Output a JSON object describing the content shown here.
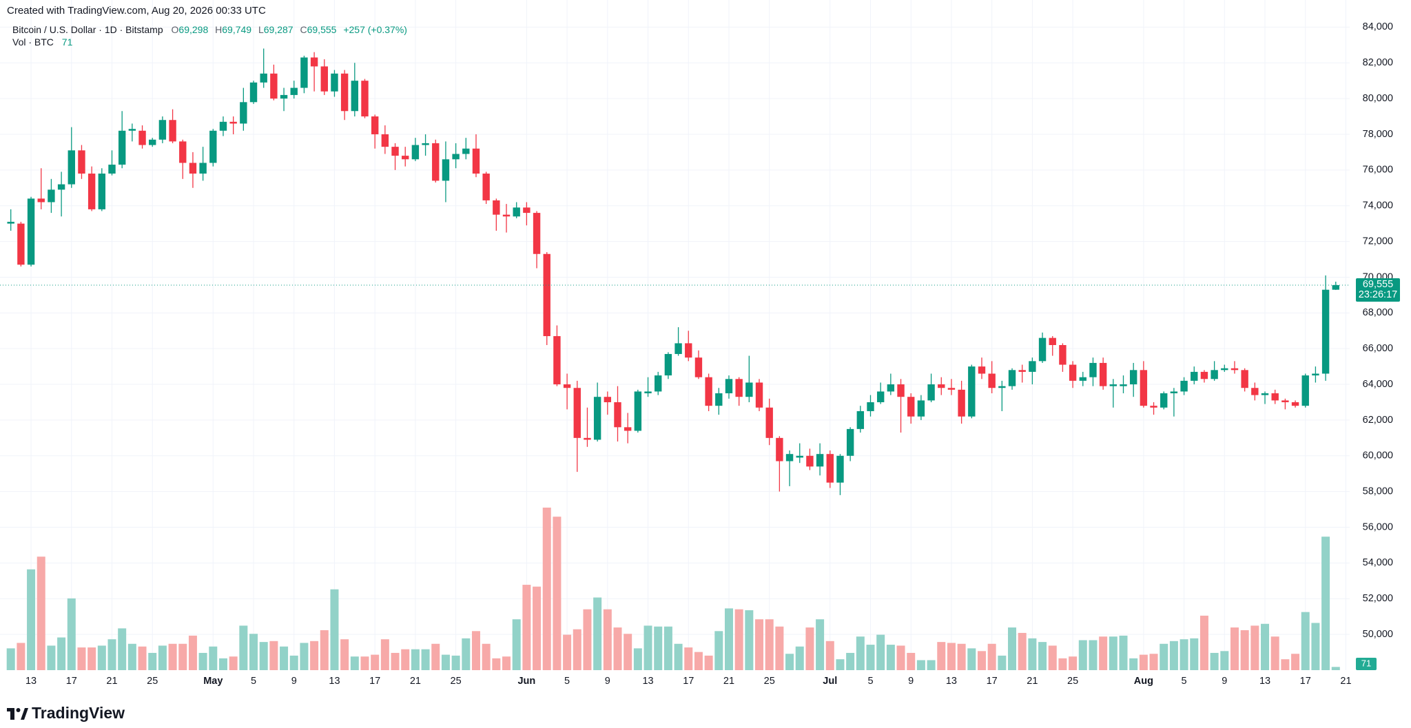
{
  "header": {
    "created": "Created with TradingView.com, Aug 20, 2026 00:33 UTC",
    "brand": "TradingView"
  },
  "chart_data": {
    "type": "candlestick",
    "legend": {
      "symbol": "Bitcoin / U.S. Dollar · 1D · Bitstamp",
      "ohlc": [
        {
          "key": "O",
          "label": "69,298"
        },
        {
          "key": "H",
          "label": "69,749"
        },
        {
          "key": "L",
          "label": "69,287"
        },
        {
          "key": "C",
          "label": "69,555"
        }
      ],
      "change": "+257 (+0.37%)",
      "volume_title": "Vol · BTC"
    },
    "last_price_label": "69,555",
    "countdown": "23:26:17",
    "up_color": "#089981",
    "down_color": "#f23645",
    "volume_up_color": "#92d2c8",
    "volume_down_color": "#f7a9a8",
    "grid": true,
    "x": [
      "2026-04-11",
      "2026-04-12",
      "2026-04-13",
      "2026-04-14",
      "2026-04-15",
      "2026-04-16",
      "2026-04-17",
      "2026-04-18",
      "2026-04-19",
      "2026-04-20",
      "2026-04-21",
      "2026-04-22",
      "2026-04-23",
      "2026-04-24",
      "2026-04-25",
      "2026-04-26",
      "2026-04-27",
      "2026-04-28",
      "2026-04-29",
      "2026-04-30",
      "2026-05-01",
      "2026-05-02",
      "2026-05-03",
      "2026-05-04",
      "2026-05-05",
      "2026-05-06",
      "2026-05-07",
      "2026-05-08",
      "2026-05-09",
      "2026-05-10",
      "2026-05-11",
      "2026-05-12",
      "2026-05-13",
      "2026-05-14",
      "2026-05-15",
      "2026-05-16",
      "2026-05-17",
      "2026-05-18",
      "2026-05-19",
      "2026-05-20",
      "2026-05-21",
      "2026-05-22",
      "2026-05-23",
      "2026-05-24",
      "2026-05-25",
      "2026-05-26",
      "2026-05-27",
      "2026-05-28",
      "2026-05-29",
      "2026-05-30",
      "2026-05-31",
      "2026-06-01",
      "2026-06-02",
      "2026-06-03",
      "2026-06-04",
      "2026-06-05",
      "2026-06-06",
      "2026-06-07",
      "2026-06-08",
      "2026-06-09",
      "2026-06-10",
      "2026-06-11",
      "2026-06-12",
      "2026-06-13",
      "2026-06-14",
      "2026-06-15",
      "2026-06-16",
      "2026-06-17",
      "2026-06-18",
      "2026-06-19",
      "2026-06-20",
      "2026-06-21",
      "2026-06-22",
      "2026-06-23",
      "2026-06-24",
      "2026-06-25",
      "2026-06-26",
      "2026-06-27",
      "2026-06-28",
      "2026-06-29",
      "2026-06-30",
      "2026-07-01",
      "2026-07-02",
      "2026-07-03",
      "2026-07-04",
      "2026-07-05",
      "2026-07-06",
      "2026-07-07",
      "2026-07-08",
      "2026-07-09",
      "2026-07-10",
      "2026-07-11",
      "2026-07-12",
      "2026-07-13",
      "2026-07-14",
      "2026-07-15",
      "2026-07-16",
      "2026-07-17",
      "2026-07-18",
      "2026-07-19",
      "2026-07-20",
      "2026-07-21",
      "2026-07-22",
      "2026-07-23",
      "2026-07-24",
      "2026-07-25",
      "2026-07-26",
      "2026-07-27",
      "2026-07-28",
      "2026-07-29",
      "2026-07-30",
      "2026-07-31",
      "2026-08-01",
      "2026-08-02",
      "2026-08-03",
      "2026-08-04",
      "2026-08-05",
      "2026-08-06",
      "2026-08-07",
      "2026-08-08",
      "2026-08-09",
      "2026-08-10",
      "2026-08-11",
      "2026-08-12",
      "2026-08-13",
      "2026-08-14",
      "2026-08-15",
      "2026-08-16",
      "2026-08-17",
      "2026-08-18",
      "2026-08-19",
      "2026-08-20"
    ],
    "open": [
      73000,
      73000,
      70700,
      74400,
      74200,
      74900,
      75200,
      77100,
      75800,
      73800,
      75800,
      76300,
      78200,
      78200,
      77400,
      77700,
      78800,
      77600,
      76400,
      75800,
      76400,
      78200,
      78700,
      78600,
      79800,
      80900,
      81400,
      80000,
      80200,
      80600,
      82300,
      81800,
      80400,
      81400,
      79300,
      81000,
      79000,
      78000,
      77300,
      76800,
      76600,
      77400,
      77500,
      75400,
      76600,
      76900,
      77200,
      75800,
      74300,
      73500,
      73400,
      73900,
      73600,
      71300,
      66700,
      64000,
      63800,
      61000,
      60900,
      63300,
      63000,
      61600,
      61400,
      63500,
      63600,
      64500,
      65700,
      66300,
      65500,
      64400,
      62800,
      63500,
      64300,
      63300,
      64100,
      62700,
      61000,
      59700,
      59900,
      60000,
      59400,
      60100,
      58500,
      60000,
      61500,
      62500,
      63000,
      63600,
      64000,
      63300,
      62200,
      63100,
      64000,
      63800,
      63700,
      62200,
      65000,
      64600,
      63800,
      63900,
      64800,
      64700,
      65300,
      66600,
      66200,
      65100,
      64200,
      64400,
      65200,
      63900,
      63900,
      64000,
      64800,
      62800,
      62700,
      63500,
      63600,
      64200,
      64700,
      64300,
      64800,
      64900,
      64800,
      63800,
      63400,
      63500,
      63100,
      63000,
      62800,
      64500,
      64600,
      69298
    ],
    "high": [
      73800,
      73100,
      74500,
      76100,
      75500,
      75900,
      78400,
      77400,
      76200,
      76100,
      77100,
      79300,
      78600,
      78500,
      77800,
      79000,
      79400,
      77700,
      77000,
      77300,
      78300,
      79000,
      79000,
      80600,
      81000,
      82800,
      81900,
      80600,
      81000,
      82400,
      82600,
      82200,
      81600,
      81600,
      82000,
      81100,
      79100,
      78500,
      77500,
      77300,
      77800,
      78000,
      77700,
      77600,
      77500,
      77800,
      78000,
      75900,
      74400,
      74100,
      74200,
      74200,
      73700,
      71400,
      67300,
      64600,
      64200,
      62700,
      64100,
      63600,
      63900,
      62400,
      63700,
      64400,
      64700,
      65800,
      67200,
      67000,
      65900,
      64600,
      63800,
      64500,
      64400,
      65600,
      64300,
      63200,
      61100,
      60300,
      60700,
      60400,
      60700,
      60300,
      60100,
      61600,
      62800,
      63400,
      64100,
      64600,
      64300,
      63500,
      63400,
      64600,
      64400,
      64300,
      64200,
      65100,
      65500,
      65300,
      64200,
      64900,
      65100,
      65500,
      66900,
      66700,
      66300,
      65300,
      64700,
      65500,
      65500,
      64300,
      64500,
      65200,
      65300,
      63000,
      63600,
      63800,
      64400,
      65000,
      64800,
      65300,
      65100,
      65300,
      64900,
      64100,
      63600,
      63700,
      63200,
      63100,
      64600,
      65000,
      70100,
      69749
    ],
    "low": [
      72600,
      70600,
      70600,
      73800,
      73600,
      73400,
      75000,
      75500,
      73700,
      73700,
      75700,
      76100,
      77600,
      77200,
      77300,
      77500,
      77500,
      75500,
      75000,
      75400,
      76200,
      77900,
      78000,
      78200,
      79700,
      80600,
      79900,
      79300,
      80000,
      80300,
      80400,
      80200,
      80100,
      78800,
      79000,
      78900,
      77200,
      76900,
      76000,
      76200,
      76500,
      76800,
      75300,
      74200,
      76100,
      76600,
      75600,
      74100,
      72600,
      72500,
      73300,
      72900,
      70500,
      66200,
      63900,
      62600,
      59100,
      60500,
      60800,
      62300,
      60800,
      60700,
      61300,
      63300,
      63400,
      64300,
      65600,
      65300,
      64300,
      62500,
      62300,
      63200,
      62800,
      63000,
      62500,
      60600,
      58000,
      58300,
      59600,
      59200,
      58900,
      58200,
      57800,
      59700,
      61300,
      62200,
      62900,
      63400,
      61300,
      61800,
      62000,
      63000,
      63400,
      63400,
      61800,
      62100,
      64300,
      63500,
      62500,
      63700,
      64100,
      64000,
      65200,
      65600,
      64700,
      63800,
      63900,
      63900,
      63700,
      62700,
      63500,
      63300,
      62700,
      62300,
      62600,
      62200,
      63400,
      64000,
      64100,
      64200,
      64700,
      64600,
      63600,
      63100,
      62900,
      62900,
      62600,
      62700,
      62700,
      64100,
      64200,
      69287
    ],
    "close": [
      73100,
      70700,
      74400,
      74200,
      74900,
      75200,
      77100,
      75800,
      73800,
      75800,
      76300,
      78200,
      78300,
      77400,
      77700,
      78800,
      77600,
      76400,
      75800,
      76400,
      78200,
      78700,
      78600,
      79800,
      80900,
      81400,
      80000,
      80200,
      80600,
      82300,
      81800,
      80400,
      81400,
      79300,
      81000,
      79000,
      78000,
      77300,
      76800,
      76600,
      77400,
      77500,
      75400,
      76600,
      76900,
      77200,
      75800,
      74300,
      73500,
      73400,
      73900,
      73600,
      71300,
      66700,
      64000,
      63800,
      61000,
      60900,
      63300,
      63000,
      61600,
      61400,
      63600,
      63600,
      64500,
      65700,
      66300,
      65500,
      64400,
      62800,
      63500,
      64300,
      63300,
      64100,
      62700,
      61000,
      59700,
      60100,
      60000,
      59400,
      60100,
      58500,
      60000,
      61500,
      62500,
      63000,
      63600,
      64000,
      63300,
      62200,
      63100,
      64000,
      63800,
      63700,
      62200,
      65000,
      64600,
      63800,
      63900,
      64800,
      64700,
      65300,
      66600,
      66200,
      65100,
      64200,
      64400,
      65200,
      63900,
      64000,
      64000,
      64800,
      62800,
      62700,
      63500,
      63600,
      64200,
      64700,
      64300,
      64800,
      64900,
      64800,
      63800,
      63400,
      63500,
      63100,
      63000,
      62800,
      64500,
      64600,
      69298,
      69555
    ],
    "volume": [
      480,
      600,
      2220,
      2500,
      540,
      720,
      1580,
      500,
      500,
      540,
      680,
      920,
      580,
      520,
      380,
      540,
      580,
      580,
      760,
      380,
      520,
      260,
      300,
      980,
      800,
      620,
      640,
      520,
      320,
      600,
      640,
      880,
      1780,
      680,
      300,
      300,
      340,
      680,
      380,
      460,
      460,
      460,
      580,
      340,
      320,
      700,
      860,
      580,
      260,
      300,
      1120,
      1880,
      1840,
      3580,
      3380,
      780,
      900,
      1340,
      1600,
      1340,
      940,
      800,
      480,
      980,
      960,
      960,
      580,
      500,
      400,
      320,
      860,
      1360,
      1340,
      1320,
      1120,
      1120,
      960,
      360,
      520,
      940,
      1120,
      640,
      240,
      380,
      740,
      560,
      780,
      560,
      540,
      380,
      220,
      220,
      620,
      600,
      580,
      480,
      420,
      580,
      320,
      940,
      820,
      700,
      620,
      540,
      260,
      300,
      660,
      660,
      740,
      740,
      760,
      260,
      340,
      360,
      580,
      640,
      680,
      700,
      1200,
      380,
      420,
      940,
      880,
      980,
      1020,
      740,
      240,
      360,
      1280,
      1040,
      2940,
      71
    ],
    "ylim": [
      48000,
      84400
    ],
    "yticks": [
      {
        "value": 50000,
        "label": "50,000"
      },
      {
        "value": 52000,
        "label": "52,000"
      },
      {
        "value": 54000,
        "label": "54,000"
      },
      {
        "value": 56000,
        "label": "56,000"
      },
      {
        "value": 58000,
        "label": "58,000"
      },
      {
        "value": 60000,
        "label": "60,000"
      },
      {
        "value": 62000,
        "label": "62,000"
      },
      {
        "value": 64000,
        "label": "64,000"
      },
      {
        "value": 66000,
        "label": "66,000"
      },
      {
        "value": 68000,
        "label": "68,000"
      },
      {
        "value": 70000,
        "label": "70,000"
      },
      {
        "value": 72000,
        "label": "72,000"
      },
      {
        "value": 74000,
        "label": "74,000"
      },
      {
        "value": 76000,
        "label": "76,000"
      },
      {
        "value": 78000,
        "label": "78,000"
      },
      {
        "value": 80000,
        "label": "80,000"
      },
      {
        "value": 82000,
        "label": "82,000"
      },
      {
        "value": 84000,
        "label": "84,000"
      }
    ],
    "xticks": [
      {
        "value": "2026-04-13",
        "label": "13"
      },
      {
        "value": "2026-04-17",
        "label": "17"
      },
      {
        "value": "2026-04-21",
        "label": "21"
      },
      {
        "value": "2026-04-25",
        "label": "25"
      },
      {
        "value": "2026-05-01",
        "label": "May"
      },
      {
        "value": "2026-05-05",
        "label": "5"
      },
      {
        "value": "2026-05-09",
        "label": "9"
      },
      {
        "value": "2026-05-13",
        "label": "13"
      },
      {
        "value": "2026-05-17",
        "label": "17"
      },
      {
        "value": "2026-05-21",
        "label": "21"
      },
      {
        "value": "2026-05-25",
        "label": "25"
      },
      {
        "value": "2026-06-01",
        "label": "Jun"
      },
      {
        "value": "2026-06-05",
        "label": "5"
      },
      {
        "value": "2026-06-09",
        "label": "9"
      },
      {
        "value": "2026-06-13",
        "label": "13"
      },
      {
        "value": "2026-06-17",
        "label": "17"
      },
      {
        "value": "2026-06-21",
        "label": "21"
      },
      {
        "value": "2026-06-25",
        "label": "25"
      },
      {
        "value": "2026-07-01",
        "label": "Jul"
      },
      {
        "value": "2026-07-05",
        "label": "5"
      },
      {
        "value": "2026-07-09",
        "label": "9"
      },
      {
        "value": "2026-07-13",
        "label": "13"
      },
      {
        "value": "2026-07-17",
        "label": "17"
      },
      {
        "value": "2026-07-21",
        "label": "21"
      },
      {
        "value": "2026-07-25",
        "label": "25"
      },
      {
        "value": "2026-08-01",
        "label": "Aug"
      },
      {
        "value": "2026-08-05",
        "label": "5"
      },
      {
        "value": "2026-08-09",
        "label": "9"
      },
      {
        "value": "2026-08-13",
        "label": "13"
      },
      {
        "value": "2026-08-17",
        "label": "17"
      },
      {
        "value": "2026-08-21",
        "label": "21"
      }
    ]
  }
}
